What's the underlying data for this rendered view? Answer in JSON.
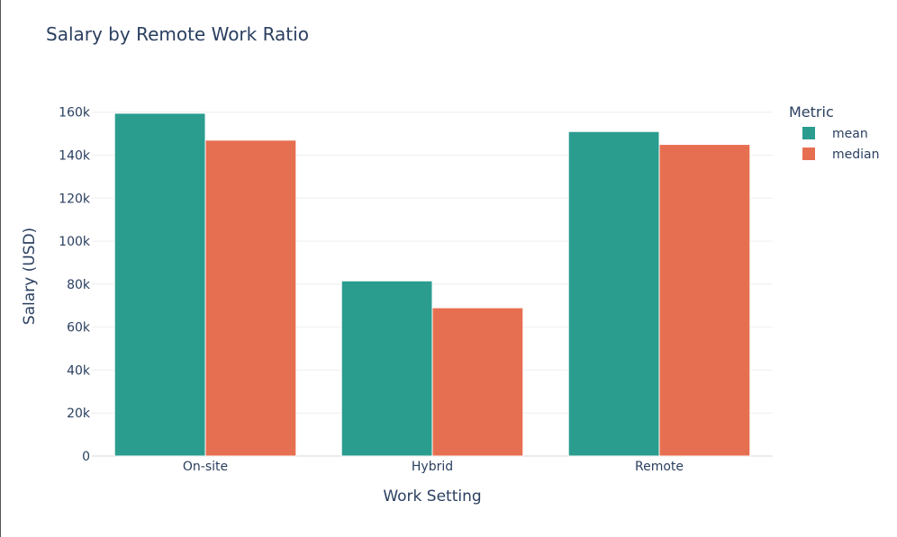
{
  "chart_data": {
    "type": "bar",
    "title": "Salary by Remote Work Ratio",
    "xlabel": "Work Setting",
    "ylabel": "Salary (USD)",
    "categories": [
      "On-site",
      "Hybrid",
      "Remote"
    ],
    "series": [
      {
        "name": "mean",
        "values": [
          159500,
          81500,
          151000
        ],
        "color": "#2a9d8f"
      },
      {
        "name": "median",
        "values": [
          147000,
          69000,
          145000
        ],
        "color": "#e76f51"
      }
    ],
    "ylim": [
      0,
      167000
    ],
    "yticks": [
      0,
      20000,
      40000,
      60000,
      80000,
      100000,
      120000,
      140000,
      160000
    ],
    "ytick_labels": [
      "0",
      "20k",
      "40k",
      "60k",
      "80k",
      "100k",
      "120k",
      "140k",
      "160k"
    ],
    "grid": true,
    "legend": {
      "title": "Metric",
      "placement": "top-right"
    }
  }
}
